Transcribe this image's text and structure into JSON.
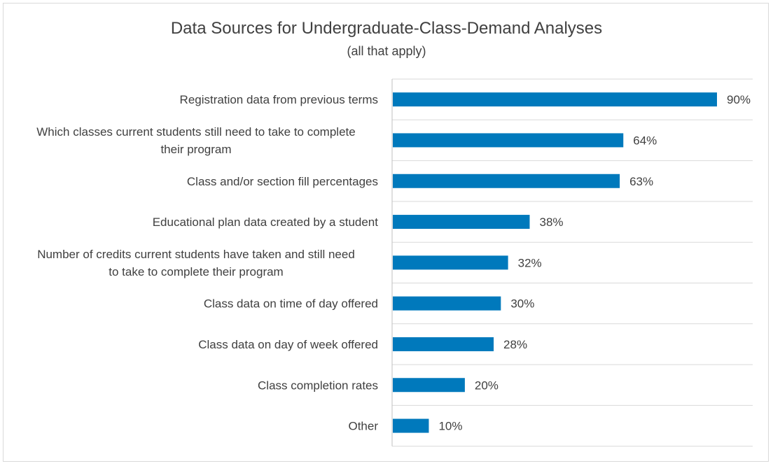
{
  "chart_data": {
    "type": "bar",
    "orientation": "horizontal",
    "title": "Data Sources for Undergraduate-Class-Demand Analyses",
    "subtitle": "(all that apply)",
    "categories": [
      [
        "Registration data from previous terms"
      ],
      [
        "Which classes current students still need to take to complete",
        "their program"
      ],
      [
        "Class and/or section fill percentages"
      ],
      [
        "Educational plan data created by a student"
      ],
      [
        "Number of credits current students have taken and still need",
        "to take to complete their program"
      ],
      [
        "Class data on time of day offered"
      ],
      [
        "Class data on day of week offered"
      ],
      [
        "Class completion rates"
      ],
      [
        "Other"
      ]
    ],
    "values": [
      90,
      64,
      63,
      38,
      32,
      30,
      28,
      20,
      10
    ],
    "value_labels": [
      "90%",
      "64%",
      "63%",
      "38%",
      "32%",
      "30%",
      "28%",
      "20%",
      "10%"
    ],
    "xlim": [
      0,
      100
    ],
    "bar_color": "#0079bc",
    "grid": "horizontal separators",
    "legend": "none"
  }
}
